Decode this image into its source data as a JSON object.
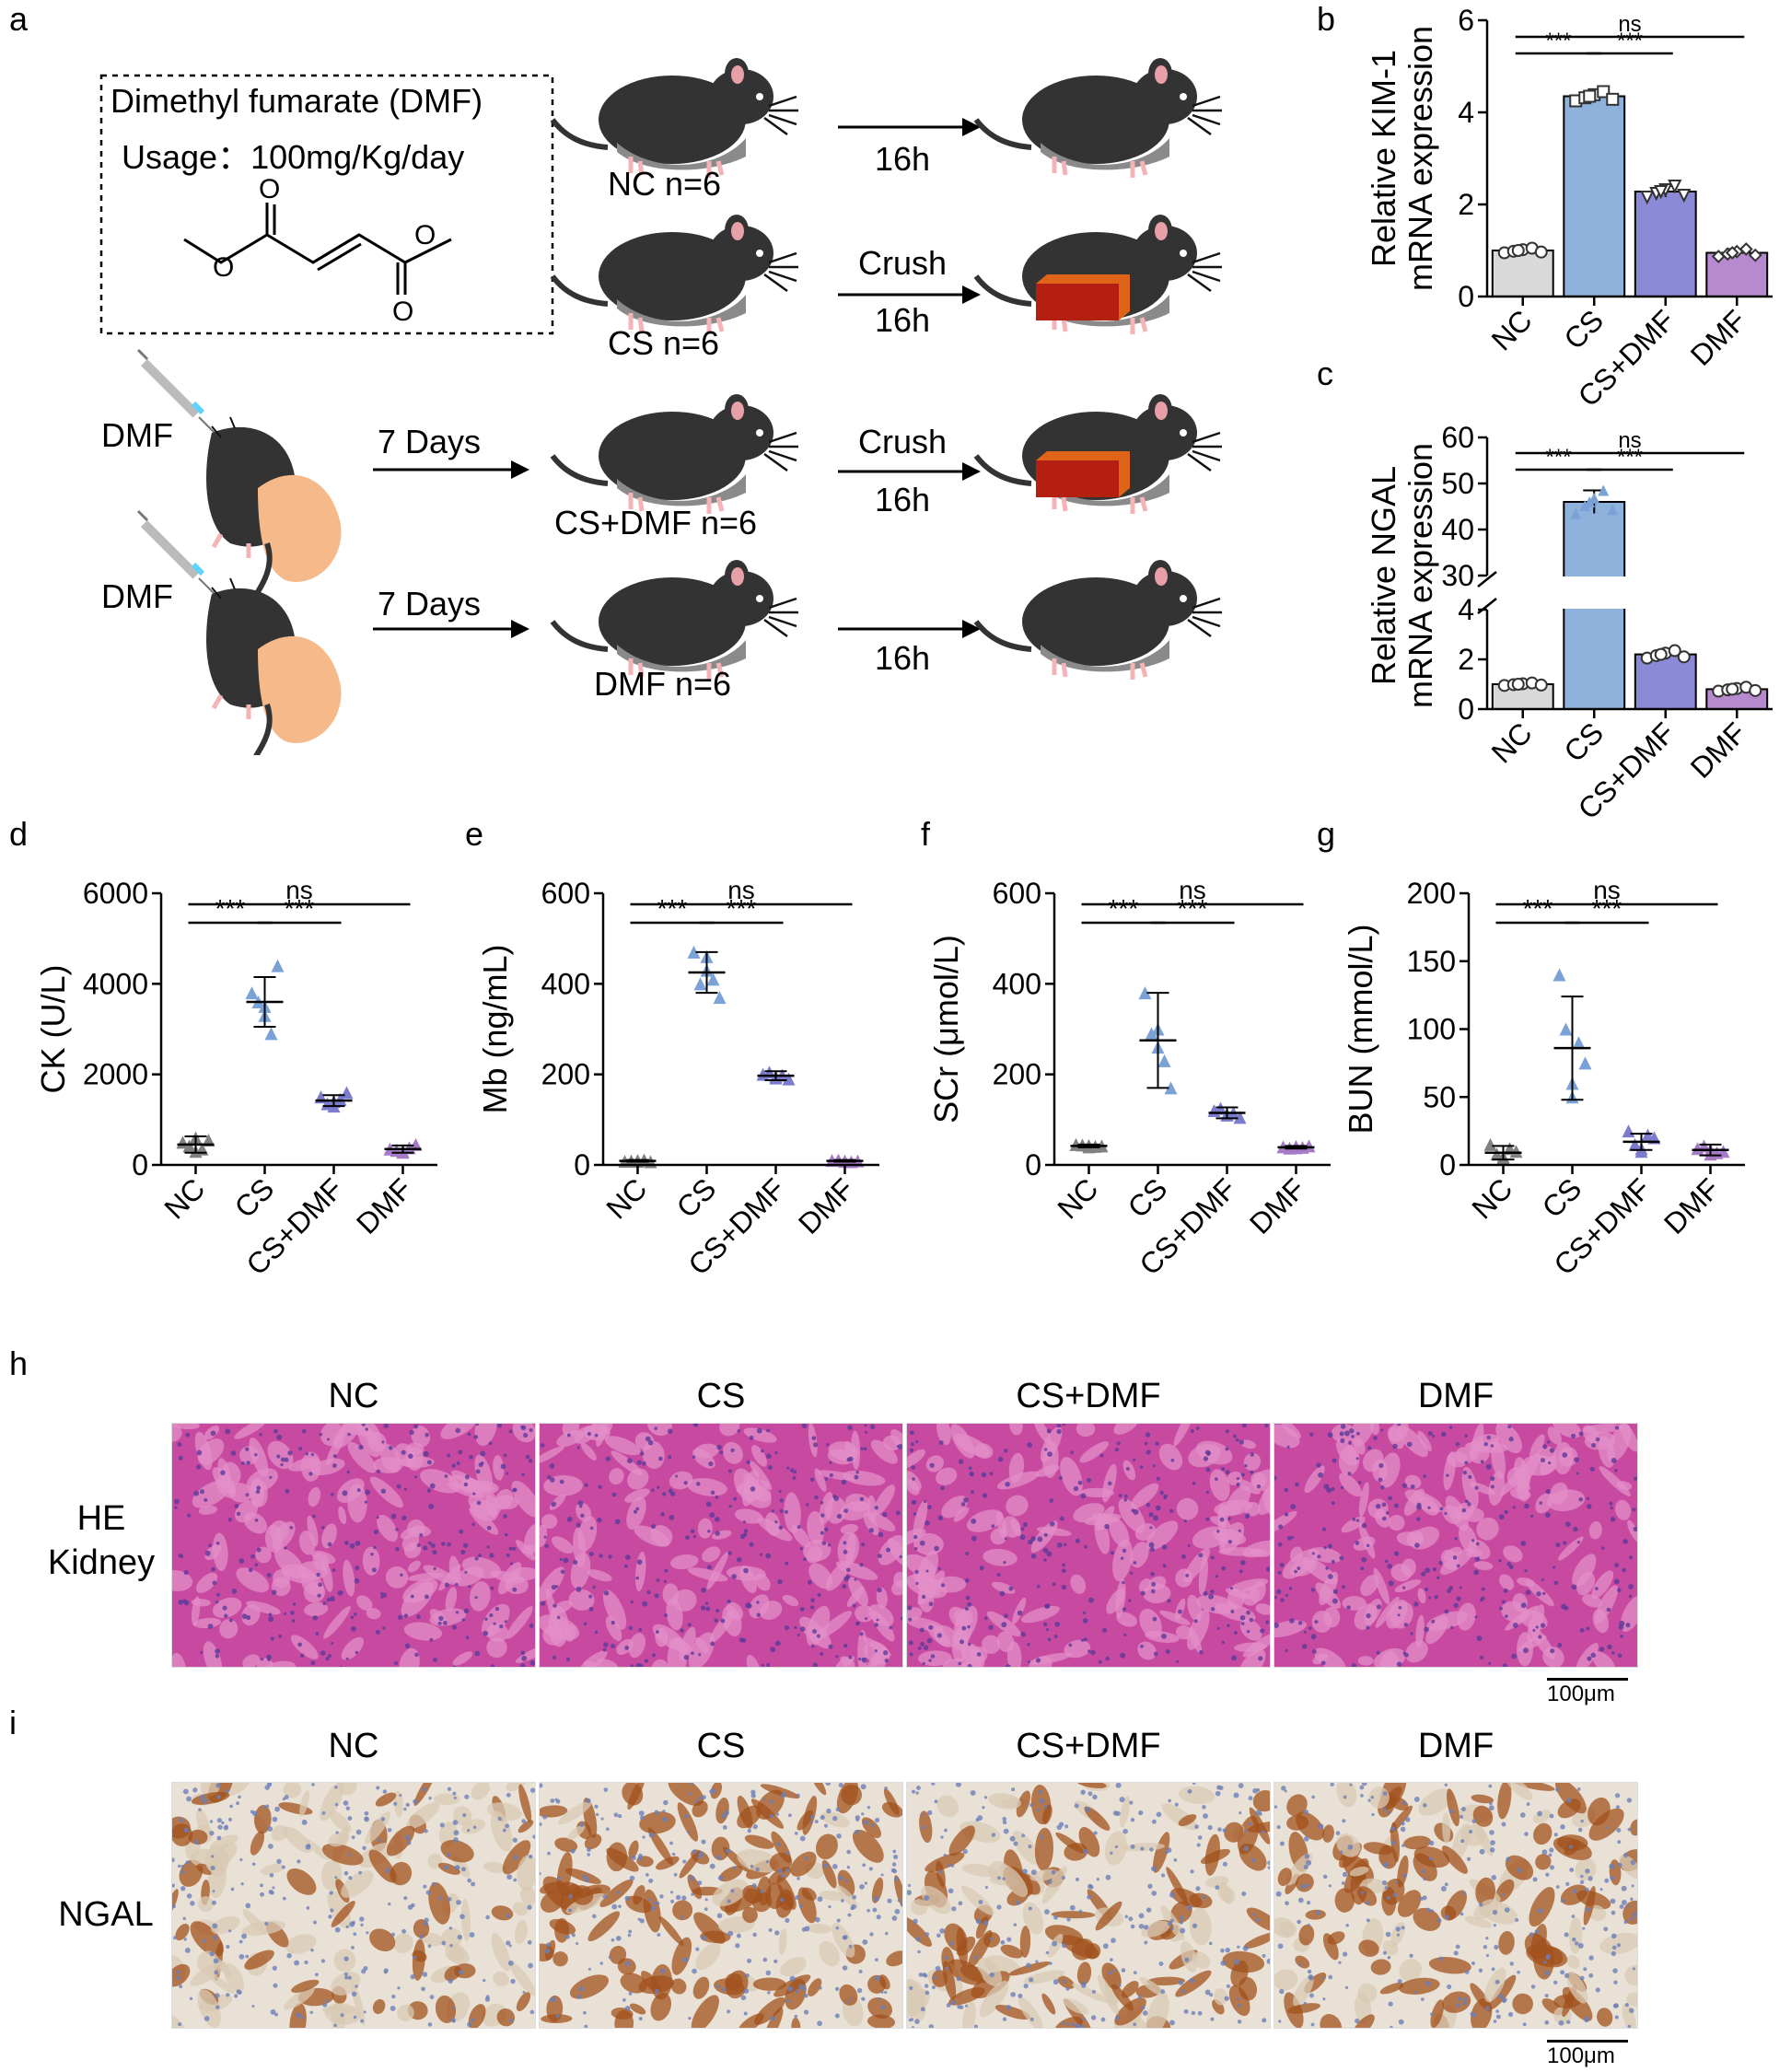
{
  "panels": {
    "a": "a",
    "b": "b",
    "c": "c",
    "d": "d",
    "e": "e",
    "f": "f",
    "g": "g",
    "h": "h",
    "i": "i"
  },
  "schematic": {
    "drug_box_title": "Dimethyl fumarate (DMF)",
    "drug_usage": "Usage：100mg/Kg/day",
    "oxygen_label": "O",
    "groups": [
      {
        "label": "NC n=6",
        "pretreat": "",
        "arrow_top": "",
        "arrow_bottom": "16h",
        "crushed": false
      },
      {
        "label": "CS n=6",
        "pretreat": "",
        "arrow_top": "Crush",
        "arrow_bottom": "16h",
        "crushed": true
      },
      {
        "label": "CS+DMF n=6",
        "pretreat": "7 Days",
        "arrow_top": "Crush",
        "arrow_bottom": "16h",
        "crushed": true
      },
      {
        "label": "DMF n=6",
        "pretreat": "7 Days",
        "arrow_top": "",
        "arrow_bottom": "16h",
        "crushed": false
      }
    ],
    "injection_label": "DMF",
    "colors": {
      "mouse_body": "#333333",
      "mouse_belly": "#8a8a8a",
      "ear": "#e8a0a8",
      "hand": "#f5b98a",
      "brick": "#b51f12",
      "brick_edge": "#e06418"
    }
  },
  "chart_data": [
    {
      "id": "b",
      "type": "bar",
      "ylabel": "Relative KIM-1\nmRNA expression",
      "categories": [
        "NC",
        "CS",
        "CS+DMF",
        "DMF"
      ],
      "values": [
        1.0,
        4.35,
        2.28,
        0.95
      ],
      "errors": [
        0.05,
        0.1,
        0.12,
        0.08
      ],
      "ylim": [
        0,
        6
      ],
      "yticks": [
        "0",
        "2",
        "4",
        "6"
      ],
      "colors": [
        "#d9d9d9",
        "#8eb2dc",
        "#8a8ad6",
        "#b78ad0"
      ],
      "markers": [
        "circle",
        "square",
        "triangle-down",
        "diamond"
      ],
      "significance": [
        {
          "from": "NC",
          "to": "DMF",
          "label": "ns"
        },
        {
          "from": "NC",
          "to": "CS",
          "label": "***"
        },
        {
          "from": "CS",
          "to": "CS+DMF",
          "label": "***"
        }
      ]
    },
    {
      "id": "c",
      "type": "bar",
      "ylabel": "Relative NGAL\nmRNA expression",
      "categories": [
        "NC",
        "CS",
        "CS+DMF",
        "DMF"
      ],
      "values": [
        1.0,
        46.0,
        2.2,
        0.8
      ],
      "errors": [
        0.05,
        2.5,
        0.15,
        0.08
      ],
      "ylim_lower": [
        0,
        4
      ],
      "yticks_lower": [
        "0",
        "2",
        "4"
      ],
      "ylim_upper": [
        30,
        60
      ],
      "yticks_upper": [
        "30",
        "40",
        "50",
        "60"
      ],
      "axis_break": true,
      "colors": [
        "#d9d9d9",
        "#8eb2dc",
        "#8a8ad6",
        "#b78ad0"
      ],
      "significance": [
        {
          "from": "NC",
          "to": "DMF",
          "label": "ns"
        },
        {
          "from": "NC",
          "to": "CS",
          "label": "***"
        },
        {
          "from": "CS",
          "to": "CS+DMF",
          "label": "***"
        }
      ]
    },
    {
      "id": "d",
      "type": "scatter",
      "ylabel": "CK (U/L)",
      "categories": [
        "NC",
        "CS",
        "CS+DMF",
        "DMF"
      ],
      "points": [
        [
          500,
          300,
          550,
          420,
          350,
          600
        ],
        [
          3800,
          3300,
          4400,
          3600,
          2900,
          3500
        ],
        [
          1500,
          1400,
          1600,
          1350,
          1450,
          1300
        ],
        [
          350,
          300,
          450,
          320,
          380,
          280
        ]
      ],
      "means": [
        450,
        3600,
        1420,
        350
      ],
      "sds": [
        180,
        550,
        120,
        80
      ],
      "ylim": [
        0,
        6000
      ],
      "yticks": [
        "0",
        "2000",
        "4000",
        "6000"
      ],
      "colors": [
        "#808080",
        "#7aa2d6",
        "#7c7ccf",
        "#a67ac6"
      ],
      "significance": [
        {
          "from": "NC",
          "to": "DMF",
          "label": "ns"
        },
        {
          "from": "NC",
          "to": "CS",
          "label": "***"
        },
        {
          "from": "CS",
          "to": "CS+DMF",
          "label": "***"
        }
      ]
    },
    {
      "id": "e",
      "type": "scatter",
      "ylabel": "Mb (ng/mL)",
      "categories": [
        "NC",
        "CS",
        "CS+DMF",
        "DMF"
      ],
      "points": [
        [
          8,
          10,
          7,
          9,
          11,
          8
        ],
        [
          470,
          430,
          370,
          400,
          410,
          460
        ],
        [
          200,
          195,
          190,
          205,
          198,
          192
        ],
        [
          10,
          8,
          9,
          11,
          7,
          9
        ]
      ],
      "means": [
        9,
        425,
        197,
        9
      ],
      "sds": [
        2,
        45,
        10,
        2
      ],
      "ylim": [
        0,
        600
      ],
      "yticks": [
        "0",
        "200",
        "400",
        "600"
      ],
      "colors": [
        "#808080",
        "#7aa2d6",
        "#7c7ccf",
        "#a67ac6"
      ],
      "significance": [
        {
          "from": "NC",
          "to": "DMF",
          "label": "ns"
        },
        {
          "from": "NC",
          "to": "CS",
          "label": "***"
        },
        {
          "from": "CS",
          "to": "CS+DMF",
          "label": "***"
        }
      ]
    },
    {
      "id": "f",
      "type": "scatter",
      "ylabel": "SCr (μmol/L)",
      "categories": [
        "NC",
        "CS",
        "CS+DMF",
        "DMF"
      ],
      "points": [
        [
          45,
          40,
          42,
          44,
          41,
          43
        ],
        [
          380,
          260,
          170,
          290,
          230,
          300
        ],
        [
          120,
          110,
          105,
          125,
          115,
          112
        ],
        [
          40,
          38,
          42,
          37,
          39,
          41
        ]
      ],
      "means": [
        42,
        275,
        115,
        39
      ],
      "sds": [
        3,
        105,
        12,
        3
      ],
      "ylim": [
        0,
        600
      ],
      "yticks": [
        "0",
        "200",
        "400",
        "600"
      ],
      "colors": [
        "#808080",
        "#7aa2d6",
        "#7c7ccf",
        "#a67ac6"
      ],
      "significance": [
        {
          "from": "NC",
          "to": "DMF",
          "label": "ns"
        },
        {
          "from": "NC",
          "to": "CS",
          "label": "***"
        },
        {
          "from": "CS",
          "to": "CS+DMF",
          "label": "***"
        }
      ]
    },
    {
      "id": "g",
      "type": "scatter",
      "ylabel": "BUN (mmol/L)",
      "categories": [
        "NC",
        "CS",
        "CS+DMF",
        "DMF"
      ],
      "points": [
        [
          15,
          5,
          10,
          8,
          12,
          6
        ],
        [
          140,
          50,
          75,
          100,
          90,
          60
        ],
        [
          25,
          10,
          20,
          15,
          22,
          12
        ],
        [
          12,
          8,
          10,
          14,
          9,
          11
        ]
      ],
      "means": [
        9,
        86,
        17,
        11
      ],
      "sds": [
        5,
        38,
        6,
        4
      ],
      "ylim": [
        0,
        200
      ],
      "yticks": [
        "0",
        "50",
        "100",
        "150",
        "200"
      ],
      "colors": [
        "#808080",
        "#7aa2d6",
        "#7c7ccf",
        "#a67ac6"
      ],
      "significance": [
        {
          "from": "NC",
          "to": "DMF",
          "label": "ns"
        },
        {
          "from": "NC",
          "to": "CS",
          "label": "***"
        },
        {
          "from": "CS",
          "to": "CS+DMF",
          "label": "***"
        }
      ]
    }
  ],
  "histology": {
    "he": {
      "row_label_1": "HE",
      "row_label_2": "Kidney",
      "columns": [
        "NC",
        "CS",
        "CS+DMF",
        "DMF"
      ],
      "scale": "100μm",
      "colors": {
        "base": "#c74aa0",
        "light": "#e38fc8",
        "nuclei": "#5b3a9a"
      }
    },
    "ihc": {
      "row_label": "NGAL",
      "columns": [
        "NC",
        "CS",
        "CS+DMF",
        "DMF"
      ],
      "scale": "100μm",
      "intensity": [
        0.35,
        0.9,
        0.55,
        0.65
      ],
      "colors": {
        "base": "#e9e1d6",
        "stain": "#a2511c",
        "nuclei": "#6b80b8"
      }
    }
  }
}
